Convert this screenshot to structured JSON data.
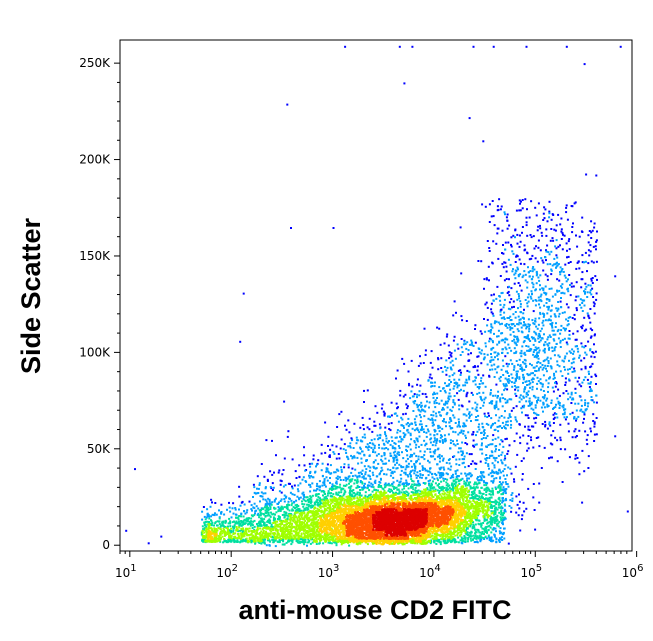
{
  "chart_data": {
    "type": "scatter",
    "subtype": "flow-cytometry-density-dot-plot",
    "xlabel": "anti-mouse CD2 FITC",
    "ylabel": "Side Scatter",
    "x_scale": "log10",
    "x_range": [
      8,
      900000
    ],
    "y_range": [
      -3000,
      262000
    ],
    "x_tick_labels": [
      {
        "base": "10",
        "exp": "1",
        "value": 10
      },
      {
        "base": "10",
        "exp": "2",
        "value": 100
      },
      {
        "base": "10",
        "exp": "3",
        "value": 1000
      },
      {
        "base": "10",
        "exp": "4",
        "value": 10000
      },
      {
        "base": "10",
        "exp": "5",
        "value": 100000
      },
      {
        "base": "10",
        "exp": "6",
        "value": 1000000
      }
    ],
    "y_tick_labels": [
      {
        "label": "0",
        "value": 0
      },
      {
        "label": "50K",
        "value": 50000
      },
      {
        "label": "100K",
        "value": 100000
      },
      {
        "label": "150K",
        "value": 150000
      },
      {
        "label": "200K",
        "value": 200000
      },
      {
        "label": "250K",
        "value": 250000
      }
    ],
    "density_colormap": [
      "#0000ff",
      "#00a0ff",
      "#00e0a0",
      "#a0ff00",
      "#ffd000",
      "#ff5000",
      "#dd0000"
    ],
    "main_population": {
      "peak_x": 4500,
      "peak_y": 13000,
      "log_x_sd": 0.42,
      "y_sd": 9000,
      "skew": "upper-right, high-SSC tail extending toward 10^5"
    },
    "sparse_points": [
      {
        "x": 1300,
        "y": 259000
      },
      {
        "x": 4500,
        "y": 259000
      },
      {
        "x": 6000,
        "y": 259000
      },
      {
        "x": 24000,
        "y": 259000
      },
      {
        "x": 38000,
        "y": 259000
      },
      {
        "x": 80000,
        "y": 259000
      },
      {
        "x": 200000,
        "y": 259000
      },
      {
        "x": 680000,
        "y": 259000
      },
      {
        "x": 300000,
        "y": 250000
      },
      {
        "x": 350,
        "y": 229000
      },
      {
        "x": 5000,
        "y": 240000
      },
      {
        "x": 22000,
        "y": 222000
      },
      {
        "x": 30000,
        "y": 210000
      },
      {
        "x": 380,
        "y": 165000
      },
      {
        "x": 1000,
        "y": 165000
      },
      {
        "x": 130,
        "y": 131000
      },
      {
        "x": 120,
        "y": 106000
      },
      {
        "x": 600000,
        "y": 140000
      },
      {
        "x": 600000,
        "y": 57000
      },
      {
        "x": 800000,
        "y": 18000
      },
      {
        "x": 11,
        "y": 40000
      },
      {
        "x": 9,
        "y": 8000
      },
      {
        "x": 20,
        "y": 5000
      },
      {
        "x": 15,
        "y": 1500
      }
    ]
  }
}
